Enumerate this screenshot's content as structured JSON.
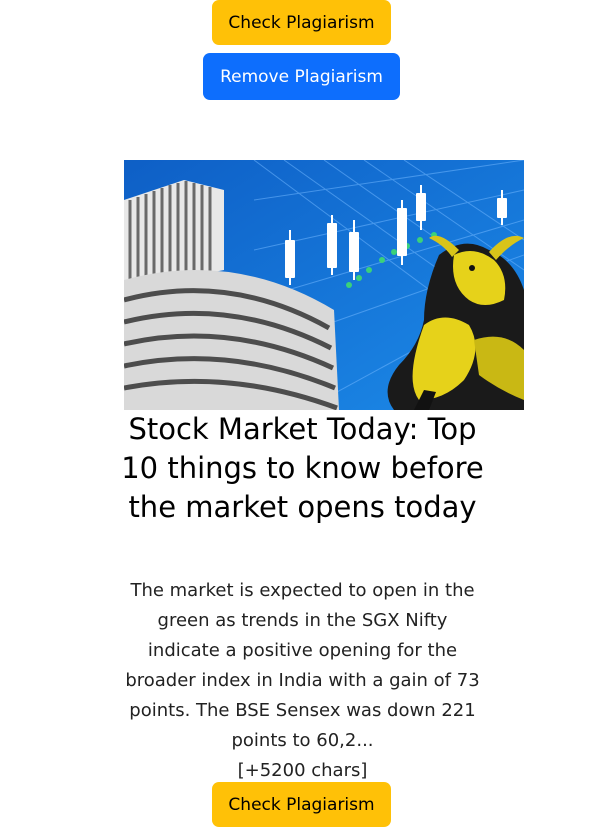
{
  "buttons": {
    "check_top": "Check Plagiarism",
    "remove": "Remove Plagiarism",
    "check_bottom": "Check Plagiarism"
  },
  "article": {
    "title": "Stock Market Today: Top 10 things to know before the market opens today",
    "description": "The market is expected to open in the green as trends in the SGX Nifty indicate a positive opening for the broader index in India with a gain of 73 points. The BSE Sensex was down 221 points to 60,2...",
    "more": "[+5200 chars]"
  },
  "colors": {
    "check_button": "#ffc107",
    "remove_button": "#0d6efd",
    "hero_background": "#1476d6"
  },
  "hero_image": {
    "subjects": [
      "stock-exchange-building",
      "candlestick-chart",
      "bull"
    ]
  }
}
